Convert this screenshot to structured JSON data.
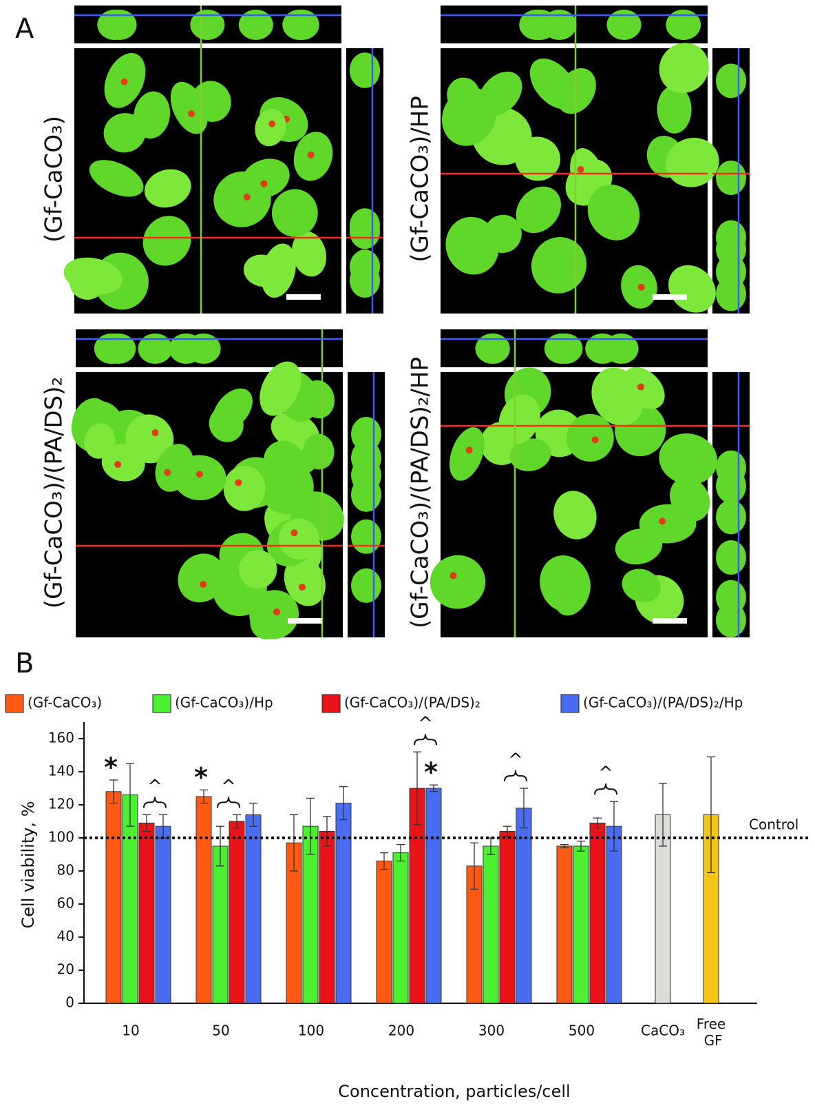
{
  "panel_a": {
    "label": "A",
    "images": [
      {
        "label": "(Gf-CaCO₃)"
      },
      {
        "label": "(Gf-CaCO₃)/HP"
      },
      {
        "label": "(Gf-CaCO₃)/(PA/DS)₂"
      },
      {
        "label": "(Gf-CaCO₃)/(PA/DS)₂/HP"
      }
    ]
  },
  "panel_b_label": "B",
  "chart_data": {
    "type": "bar",
    "x_label": "Concentration, particles/cell",
    "y_label": "Cell viability, %",
    "categories": [
      "10",
      "50",
      "100",
      "200",
      "300",
      "500",
      "CaCO₃",
      "Free GF"
    ],
    "series": [
      {
        "name": "(Gf-CaCO₃)",
        "color": "#ff5a14",
        "values": [
          128,
          125,
          97,
          86,
          83,
          95,
          null,
          null
        ],
        "errors": [
          7,
          4,
          17,
          5,
          14,
          1,
          null,
          null
        ]
      },
      {
        "name": "(Gf-CaCO₃)/Hp",
        "color": "#4cf030",
        "values": [
          126,
          95,
          107,
          91,
          95,
          95,
          null,
          null
        ],
        "errors": [
          19,
          12,
          17,
          5,
          5,
          3,
          null,
          null
        ]
      },
      {
        "name": "(Gf-CaCO₃)/(PA/DS)₂",
        "color": "#e8141a",
        "values": [
          109,
          110,
          104,
          130,
          104,
          109,
          null,
          null
        ],
        "errors": [
          5,
          4,
          9,
          22,
          3,
          3,
          null,
          null
        ]
      },
      {
        "name": "(Gf-CaCO₃)/(PA/DS)₂/Hp",
        "color": "#4a6cf0",
        "values": [
          107,
          114,
          121,
          130,
          118,
          107,
          null,
          null
        ],
        "errors": [
          7,
          7,
          10,
          2,
          12,
          15,
          null,
          null
        ]
      }
    ],
    "single_bars": {
      "values": [
        null,
        null,
        null,
        null,
        null,
        null,
        114,
        114
      ],
      "errors": [
        null,
        null,
        null,
        null,
        null,
        null,
        19,
        35
      ],
      "colors": [
        null,
        null,
        null,
        null,
        null,
        null,
        "#d9dcd7",
        "#f5c518"
      ]
    },
    "annotations": [
      {
        "text": "*",
        "category": 0,
        "series": [
          0
        ]
      },
      {
        "text": "^",
        "category": 0,
        "series": [
          2,
          3
        ]
      },
      {
        "text": "*",
        "category": 1,
        "series": [
          0
        ]
      },
      {
        "text": "^",
        "category": 1,
        "series": [
          1,
          2
        ]
      },
      {
        "text": "^",
        "category": 3,
        "series": [
          2,
          3
        ]
      },
      {
        "text": "*",
        "category": 3,
        "series": [
          3
        ]
      },
      {
        "text": "^",
        "category": 4,
        "series": [
          2,
          3
        ]
      },
      {
        "text": "^",
        "category": 5,
        "series": [
          2,
          3
        ]
      }
    ],
    "reference_line": {
      "value": 100,
      "label": "Control"
    },
    "ylim": [
      0,
      170
    ],
    "yticks": [
      0,
      20,
      40,
      60,
      80,
      100,
      120,
      140,
      160
    ]
  }
}
